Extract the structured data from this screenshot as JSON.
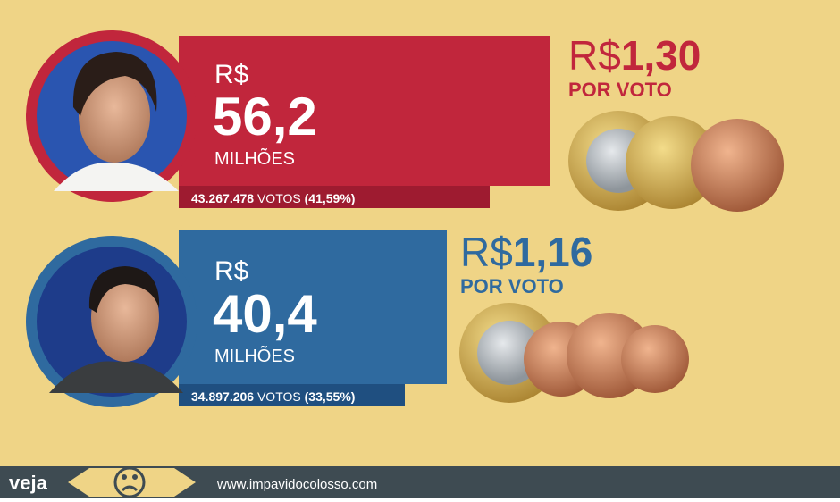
{
  "candidates": [
    {
      "currency": "R$",
      "amount": "56,2",
      "unit": "MILHÕES",
      "votes": "43.267.478",
      "votes_word": "VOTOS",
      "percent": "(41,59%)",
      "per_vote_currency": "R$",
      "per_vote_amount": "1,30",
      "per_vote_label": "POR VOTO"
    },
    {
      "currency": "R$",
      "amount": "40,4",
      "unit": "MILHÕES",
      "votes": "34.897.206",
      "votes_word": "VOTOS",
      "percent": "(33,55%)",
      "per_vote_currency": "R$",
      "per_vote_amount": "1,16",
      "per_vote_label": "POR VOTO"
    }
  ],
  "footer": {
    "brand": "veja",
    "url": "www.impavidocolosso.com"
  }
}
